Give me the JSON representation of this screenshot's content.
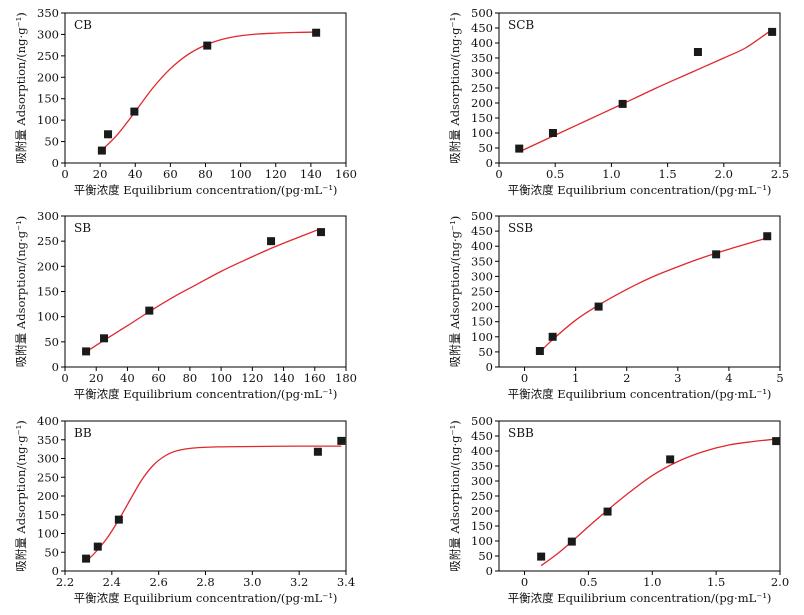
{
  "figure": {
    "x_axis_title": "平衡浓度 Equilibrium concentration/(pg·mL⁻¹)",
    "y_axis_title": "吸附量 Adsorption/(ng·g⁻¹)",
    "marker_color": "#1a1a1a",
    "fit_line_color": "#e0282e",
    "axis_color": "#000000"
  },
  "chart_data": [
    {
      "type": "scatter",
      "title": "CB",
      "xlabel": "平衡浓度 Equilibrium concentration/(pg·mL⁻¹)",
      "ylabel": "吸附量 Adsorption/(ng·g⁻¹)",
      "xlim": [
        0,
        160
      ],
      "ylim": [
        0,
        350
      ],
      "xticks": [
        0,
        20,
        40,
        60,
        80,
        100,
        120,
        140,
        160
      ],
      "yticks": [
        0,
        50,
        100,
        150,
        200,
        250,
        300,
        350
      ],
      "points": [
        [
          21,
          29
        ],
        [
          24.5,
          67
        ],
        [
          39.5,
          120
        ],
        [
          81,
          274
        ],
        [
          143,
          304
        ]
      ],
      "fit": {
        "x": [
          21,
          30,
          40,
          50,
          60,
          70,
          80,
          90,
          100,
          110,
          120,
          130,
          143
        ],
        "y": [
          30,
          67,
          120,
          175,
          220,
          253,
          275,
          289,
          297,
          301,
          303,
          304.5,
          305.5
        ]
      }
    },
    {
      "type": "scatter",
      "title": "SCB",
      "xlabel": "平衡浓度 Equilibrium concentration/(pg·mL⁻¹)",
      "ylabel": "吸附量 Adsorption/(ng·g⁻¹)",
      "xlim": [
        0,
        2.5
      ],
      "ylim": [
        0,
        500
      ],
      "xticks": [
        0,
        0.5,
        1.0,
        1.5,
        2.0,
        2.5
      ],
      "xtick_labels": [
        "0",
        "0.5",
        "1.0",
        "1.5",
        "2.0",
        "2.5"
      ],
      "yticks": [
        0,
        50,
        100,
        150,
        200,
        250,
        300,
        350,
        400,
        450,
        500
      ],
      "points": [
        [
          0.18,
          48
        ],
        [
          0.48,
          100
        ],
        [
          1.1,
          197
        ],
        [
          1.77,
          370
        ],
        [
          2.43,
          437
        ]
      ],
      "fit": {
        "x": [
          0.18,
          0.5,
          0.8,
          1.1,
          1.4,
          1.7,
          2.0,
          2.2,
          2.43
        ],
        "y": [
          37,
          93,
          145,
          197,
          250,
          300,
          350,
          385,
          445
        ]
      }
    },
    {
      "type": "scatter",
      "title": "SB",
      "xlabel": "平衡浓度 Equilibrium concentration/(pg·mL⁻¹)",
      "ylabel": "吸附量 Adsorption/(ng·g⁻¹)",
      "xlim": [
        0,
        180
      ],
      "ylim": [
        0,
        300
      ],
      "xticks": [
        0,
        20,
        40,
        60,
        80,
        100,
        120,
        140,
        160,
        180
      ],
      "yticks": [
        0,
        50,
        100,
        150,
        200,
        250,
        300
      ],
      "points": [
        [
          13.5,
          31
        ],
        [
          25,
          57
        ],
        [
          54,
          112
        ],
        [
          132,
          250
        ],
        [
          164,
          268
        ]
      ],
      "fit": {
        "x": [
          13.5,
          25,
          40,
          55,
          70,
          85,
          100,
          115,
          130,
          145,
          164
        ],
        "y": [
          30,
          53,
          82,
          112,
          140,
          165,
          190,
          212,
          233,
          252,
          275
        ]
      }
    },
    {
      "type": "scatter",
      "title": "SSB",
      "xlabel": "平衡浓度 Equilibrium concentration/(pg·mL⁻¹)",
      "ylabel": "吸附量 Adsorption/(ng·g⁻¹)",
      "xlim": [
        -0.5,
        5
      ],
      "ylim": [
        0,
        500
      ],
      "xticks": [
        0,
        1,
        2,
        3,
        4,
        5
      ],
      "yticks": [
        0,
        50,
        100,
        150,
        200,
        250,
        300,
        350,
        400,
        450,
        500
      ],
      "points": [
        [
          0.3,
          53
        ],
        [
          0.55,
          100
        ],
        [
          1.45,
          200
        ],
        [
          3.75,
          373
        ],
        [
          4.75,
          433
        ]
      ],
      "fit": {
        "x": [
          0.3,
          0.5,
          1.0,
          1.5,
          2.0,
          2.5,
          3.0,
          3.5,
          4.0,
          4.5,
          4.8
        ],
        "y": [
          48,
          83,
          155,
          210,
          257,
          298,
          332,
          363,
          390,
          415,
          430
        ]
      }
    },
    {
      "type": "scatter",
      "title": "BB",
      "xlabel": "平衡浓度 Equilibrium concentration/(pg·mL⁻¹)",
      "ylabel": "吸附量 Adsorption/(ng·g⁻¹)",
      "xlim": [
        2.2,
        3.4
      ],
      "ylim": [
        0,
        400
      ],
      "xticks": [
        2.2,
        2.4,
        2.6,
        2.8,
        3.0,
        3.2,
        3.4
      ],
      "xtick_labels": [
        "2.2",
        "2.4",
        "2.6",
        "2.8",
        "3.0",
        "3.2",
        "3.4"
      ],
      "yticks": [
        0,
        50,
        100,
        150,
        200,
        250,
        300,
        350,
        400
      ],
      "points": [
        [
          2.29,
          33
        ],
        [
          2.34,
          65
        ],
        [
          2.43,
          137
        ],
        [
          3.28,
          318
        ],
        [
          3.38,
          347
        ]
      ],
      "fit": {
        "x": [
          2.29,
          2.33,
          2.38,
          2.43,
          2.48,
          2.53,
          2.58,
          2.63,
          2.68,
          2.75,
          2.85,
          3.0,
          3.2,
          3.38
        ],
        "y": [
          25,
          50,
          88,
          137,
          192,
          245,
          284,
          308,
          321,
          328,
          331,
          332,
          333,
          333
        ]
      }
    },
    {
      "type": "scatter",
      "title": "SBB",
      "xlabel": "平衡浓度 Equilibrium concentration/(pg·mL⁻¹)",
      "ylabel": "吸附量 Adsorption/(ng·g⁻¹)",
      "xlim": [
        -0.2,
        2.0
      ],
      "ylim": [
        0,
        500
      ],
      "xticks": [
        0,
        0.5,
        1.0,
        1.5,
        2.0
      ],
      "xtick_labels": [
        "0",
        "0.5",
        "1.0",
        "1.5",
        "2.0"
      ],
      "yticks": [
        0,
        50,
        100,
        150,
        200,
        250,
        300,
        350,
        400,
        450,
        500
      ],
      "points": [
        [
          0.13,
          48
        ],
        [
          0.37,
          98
        ],
        [
          0.65,
          198
        ],
        [
          1.14,
          372
        ],
        [
          1.97,
          433
        ]
      ],
      "fit": {
        "x": [
          0.13,
          0.25,
          0.37,
          0.5,
          0.65,
          0.8,
          1.0,
          1.2,
          1.4,
          1.6,
          1.8,
          1.97
        ],
        "y": [
          18,
          55,
          98,
          148,
          203,
          255,
          318,
          365,
          398,
          420,
          432,
          440
        ]
      }
    }
  ]
}
